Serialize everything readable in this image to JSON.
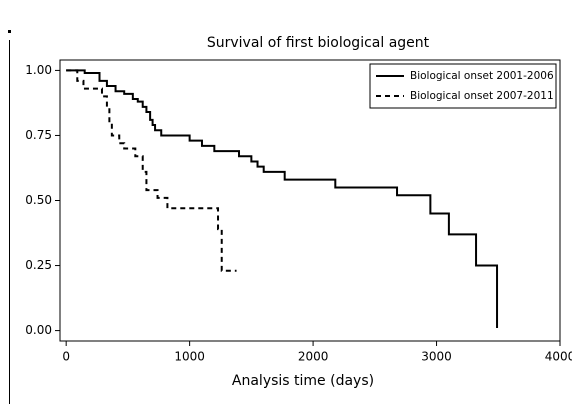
{
  "chart_data": {
    "type": "line",
    "title": "Survival of first biological agent",
    "x_label": "Analysis time (days)",
    "xlim": [
      -50,
      4000
    ],
    "ylim": [
      -0.04,
      1.04
    ],
    "xticks": [
      0,
      1000,
      2000,
      3000,
      4000
    ],
    "yticks": [
      {
        "value": 0,
        "label": "0.00"
      },
      {
        "value": 0.25,
        "label": "0.25"
      },
      {
        "value": 0.5,
        "label": "0.50"
      },
      {
        "value": 0.75,
        "label": "0.75"
      },
      {
        "value": 1,
        "label": "1.00"
      }
    ],
    "legend": "top-right",
    "series": [
      {
        "name": "Biological onset 2001-2006",
        "color": "#000000",
        "dash": "solid",
        "x": [
          0,
          150,
          150,
          270,
          270,
          330,
          330,
          400,
          400,
          470,
          470,
          540,
          540,
          580,
          580,
          620,
          620,
          650,
          650,
          680,
          680,
          700,
          700,
          720,
          720,
          770,
          770,
          1000,
          1000,
          1100,
          1100,
          1200,
          1200,
          1400,
          1400,
          1500,
          1500,
          1550,
          1550,
          1600,
          1600,
          1770,
          1770,
          2180,
          2180,
          2680,
          2680,
          2950,
          2950,
          3100,
          3100,
          3320,
          3320,
          3490,
          3490
        ],
        "values": [
          1,
          1,
          0.99,
          0.99,
          0.96,
          0.96,
          0.94,
          0.94,
          0.92,
          0.92,
          0.91,
          0.91,
          0.89,
          0.89,
          0.88,
          0.88,
          0.86,
          0.86,
          0.84,
          0.84,
          0.81,
          0.81,
          0.79,
          0.79,
          0.77,
          0.77,
          0.75,
          0.75,
          0.73,
          0.73,
          0.71,
          0.71,
          0.69,
          0.69,
          0.67,
          0.67,
          0.65,
          0.65,
          0.63,
          0.63,
          0.61,
          0.61,
          0.58,
          0.58,
          0.55,
          0.55,
          0.52,
          0.52,
          0.45,
          0.45,
          0.37,
          0.37,
          0.25,
          0.25,
          0.01
        ]
      },
      {
        "name": "Biological onset 2007-2011",
        "color": "#000000",
        "dash": "dashed",
        "x": [
          0,
          90,
          90,
          140,
          140,
          290,
          290,
          330,
          330,
          350,
          350,
          370,
          370,
          430,
          430,
          470,
          470,
          560,
          560,
          620,
          620,
          650,
          650,
          740,
          740,
          820,
          820,
          1230,
          1230,
          1260,
          1260,
          1380
        ],
        "values": [
          1,
          1,
          0.96,
          0.96,
          0.93,
          0.93,
          0.9,
          0.9,
          0.86,
          0.86,
          0.8,
          0.8,
          0.75,
          0.75,
          0.72,
          0.72,
          0.7,
          0.7,
          0.67,
          0.67,
          0.61,
          0.61,
          0.54,
          0.54,
          0.51,
          0.51,
          0.47,
          0.47,
          0.39,
          0.39,
          0.23,
          0.23
        ]
      }
    ]
  }
}
